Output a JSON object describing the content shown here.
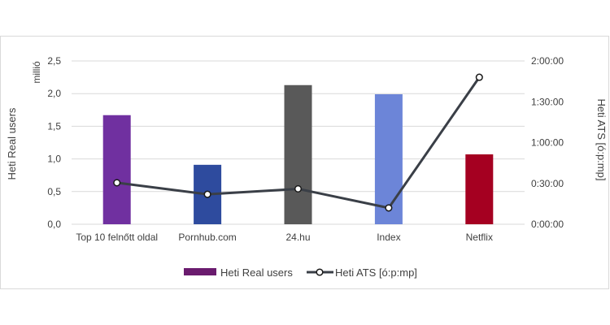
{
  "chart_data": {
    "type": "bar",
    "categories": [
      "Top 10 felnőtt oldal",
      "Pornhub.com",
      "24.hu",
      "Index",
      "Netflix"
    ],
    "series": [
      {
        "name": "Heti Real users",
        "type": "bar",
        "axis": "left",
        "values": [
          1.67,
          0.91,
          2.13,
          1.99,
          1.07
        ],
        "colors": [
          "#7030A0",
          "#2E4B9E",
          "#595959",
          "#6C85D8",
          "#A50021"
        ],
        "legend_color": "#6A1B6E"
      },
      {
        "name": "Heti ATS [ó:p:mp]",
        "type": "line",
        "axis": "right",
        "values": [
          "0:30:30",
          "0:22:00",
          "0:26:00",
          "0:12:00",
          "1:48:00"
        ],
        "color": "#3A3F47"
      }
    ],
    "left_axis": {
      "label": "Heti Real users",
      "unit": "millió",
      "ticks": [
        "0,0",
        "0,5",
        "1,0",
        "1,5",
        "2,0",
        "2,5"
      ],
      "range": [
        0,
        2.5
      ]
    },
    "right_axis": {
      "label": "Heti ATS [ó:p:mp]",
      "ticks": [
        "0:00:00",
        "0:30:00",
        "1:00:00",
        "1:30:00",
        "2:00:00"
      ],
      "range": [
        "0:00:00",
        "2:00:00"
      ]
    },
    "grid": true,
    "legend_position": "bottom"
  }
}
